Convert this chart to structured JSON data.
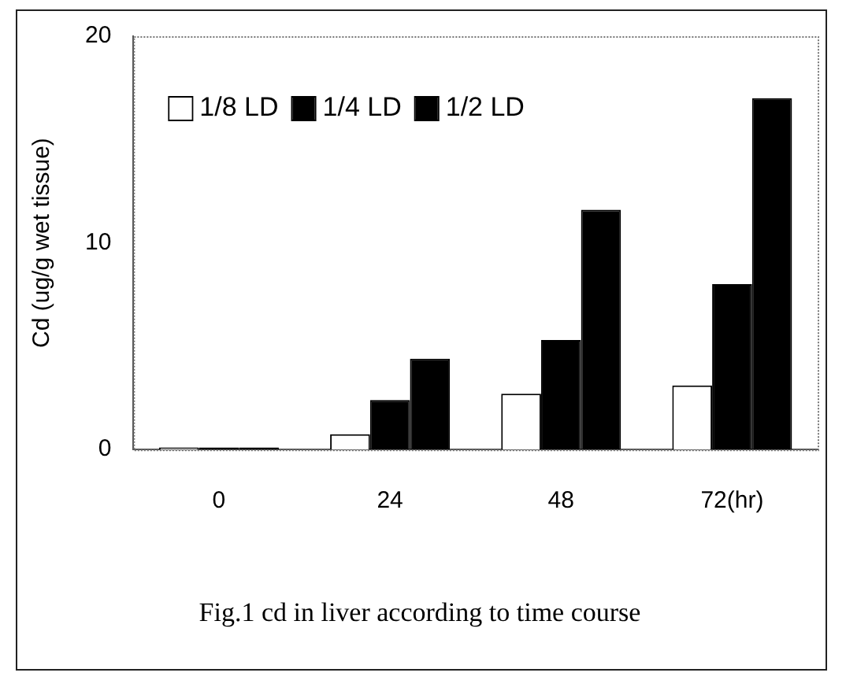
{
  "chart_data": {
    "type": "bar",
    "title": "Fig.1 cd in liver according to time course",
    "ylabel": "Cd (ug/g wet tissue)",
    "categories": [
      "0",
      "24",
      "48",
      "72(hr)"
    ],
    "series": [
      {
        "name": "1/8 LD",
        "color": "#ffffff",
        "values": [
          0.1,
          0.74,
          2.7,
          3.1
        ]
      },
      {
        "name": "1/4 LD",
        "color": "#000000",
        "values": [
          0.1,
          2.4,
          5.3,
          8.0
        ]
      },
      {
        "name": "1/2 LD",
        "color": "#000000",
        "values": [
          0.1,
          4.4,
          11.6,
          17.0
        ]
      }
    ],
    "ylim": [
      0,
      20
    ],
    "yticks": [
      0,
      10,
      20
    ],
    "grid": false,
    "legend": "top left"
  }
}
